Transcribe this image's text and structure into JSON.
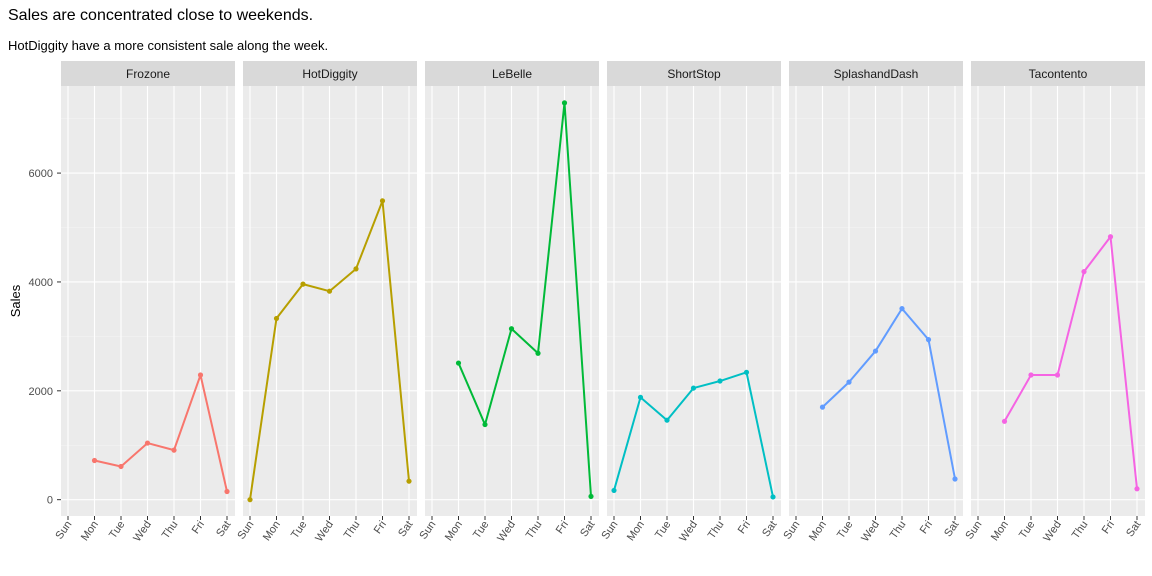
{
  "chart_data": {
    "type": "line",
    "title": "Sales are concentrated close to weekends.",
    "subtitle": "HotDiggity have a more consistent sale along the week.",
    "xlabel": "",
    "ylabel": "Sales",
    "categories": [
      "Sun",
      "Mon",
      "Tue",
      "Wed",
      "Thu",
      "Fri",
      "Sat"
    ],
    "y_ticks": [
      0,
      2000,
      4000,
      6000
    ],
    "ylim": [
      -300,
      7600
    ],
    "grid": true,
    "legend": "none",
    "facets": [
      {
        "name": "Frozone",
        "color": "#F8766D",
        "values": [
          null,
          720,
          610,
          1040,
          910,
          2290,
          150
        ]
      },
      {
        "name": "HotDiggity",
        "color": "#B79F00",
        "values": [
          0,
          3330,
          3960,
          3830,
          4240,
          5490,
          340
        ]
      },
      {
        "name": "LeBelle",
        "color": "#00BA38",
        "values": [
          null,
          2510,
          1380,
          3140,
          2690,
          7290,
          60
        ]
      },
      {
        "name": "ShortStop",
        "color": "#00BFC4",
        "values": [
          170,
          1880,
          1460,
          2050,
          2180,
          2340,
          50
        ]
      },
      {
        "name": "SplashandDash",
        "color": "#619CFF",
        "values": [
          null,
          1700,
          2160,
          2730,
          3510,
          2940,
          380
        ]
      },
      {
        "name": "Tacontento",
        "color": "#F564E3",
        "values": [
          null,
          1440,
          2290,
          2290,
          4190,
          4830,
          200
        ]
      }
    ]
  }
}
